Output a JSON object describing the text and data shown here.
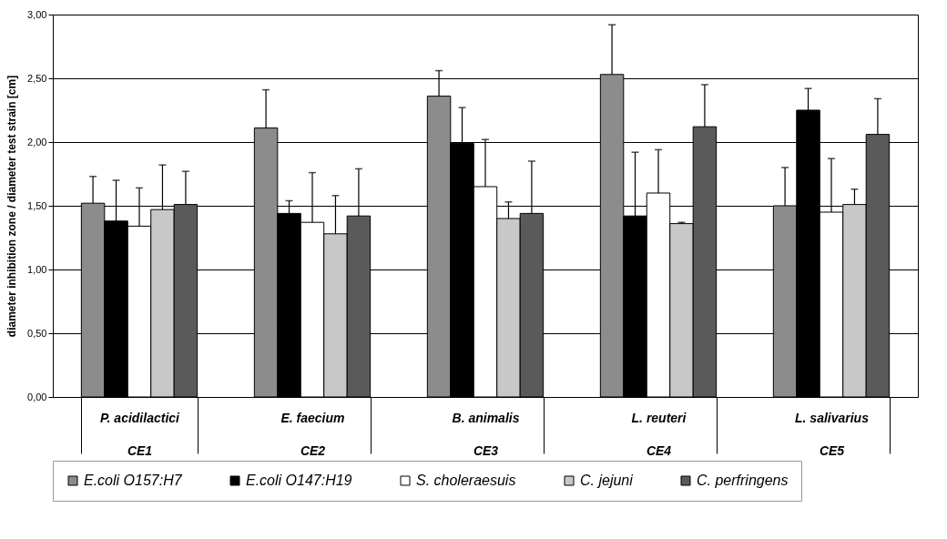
{
  "chart_data": {
    "type": "bar",
    "ylabel": "diameter inhibition zone / diameter test strain [cm]",
    "categories": [
      "P. acidilactici\nCE1",
      "E. faecium\nCE2",
      "B. animalis\nCE3",
      "L. reuteri\nCE4",
      "L. salivarius\nCE5"
    ],
    "ylim": [
      0,
      3
    ],
    "yticks": [
      {
        "value": 0,
        "label": "0,00"
      },
      {
        "value": 0.5,
        "label": "0,50"
      },
      {
        "value": 1,
        "label": "1,00"
      },
      {
        "value": 1.5,
        "label": "1,50"
      },
      {
        "value": 2,
        "label": "2,00"
      },
      {
        "value": 2.5,
        "label": "2,50"
      },
      {
        "value": 3,
        "label": "3,00"
      }
    ],
    "grid": "y",
    "legend": "bottom",
    "series": [
      {
        "name": "E.coli O157:H7",
        "color": "#8c8c8c",
        "values": [
          1.52,
          2.11,
          2.36,
          2.53,
          1.5
        ],
        "errors": [
          0.21,
          0.3,
          0.2,
          0.39,
          0.3
        ]
      },
      {
        "name": "E.coli O147:H19",
        "color": "#000000",
        "values": [
          1.38,
          1.44,
          1.99,
          1.42,
          2.25
        ],
        "errors": [
          0.32,
          0.1,
          0.28,
          0.5,
          0.17
        ]
      },
      {
        "name": "S. choleraesuis",
        "color": "#ffffff",
        "values": [
          1.34,
          1.37,
          1.65,
          1.6,
          1.45
        ],
        "errors": [
          0.3,
          0.39,
          0.37,
          0.34,
          0.42
        ]
      },
      {
        "name": "C. jejuni",
        "color": "#c8c8c8",
        "values": [
          1.47,
          1.28,
          1.4,
          1.36,
          1.51
        ],
        "errors": [
          0.35,
          0.3,
          0.13,
          0.01,
          0.12
        ]
      },
      {
        "name": "C. perfringens",
        "color": "#5a5a5a",
        "values": [
          1.51,
          1.42,
          1.44,
          2.12,
          2.06
        ],
        "errors": [
          0.26,
          0.37,
          0.41,
          0.33,
          0.28
        ]
      }
    ]
  }
}
